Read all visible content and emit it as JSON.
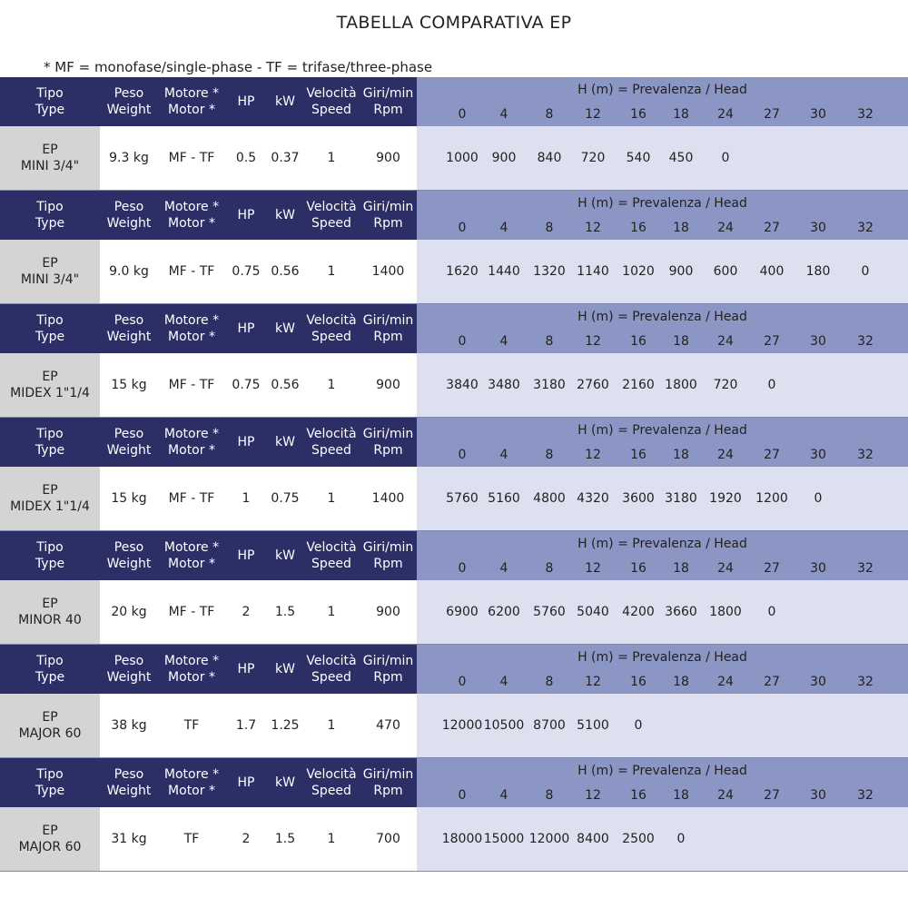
{
  "title": "TABELLA COMPARATIVA EP",
  "note": "* MF = monofase/single-phase - TF = trifase/three-phase",
  "header": {
    "tipo": [
      "Tipo",
      "Type"
    ],
    "peso": [
      "Peso",
      "Weight"
    ],
    "motore": [
      "Motore *",
      "Motor *"
    ],
    "hp": "HP",
    "kw": "kW",
    "velocita": [
      "Velocità",
      "Speed"
    ],
    "giri": [
      "Giri/min",
      "Rpm"
    ],
    "head_title": "H (m) = Prevalenza /  Head",
    "heads": [
      "0",
      "4",
      "8",
      "12",
      "16",
      "18",
      "24",
      "27",
      "30",
      "32"
    ]
  },
  "rows": [
    {
      "type": [
        "EP",
        "MINI 3/4\""
      ],
      "weight": "9.3 kg",
      "motor": "MF - TF",
      "hp": "0.5",
      "kw": "0.37",
      "speed": "1",
      "rpm": "900",
      "flows": [
        "1000",
        "900",
        "840",
        "720",
        "540",
        "450",
        "0",
        "",
        "",
        ""
      ]
    },
    {
      "type": [
        "EP",
        "MINI 3/4\""
      ],
      "weight": "9.0 kg",
      "motor": "MF - TF",
      "hp": "0.75",
      "kw": "0.56",
      "speed": "1",
      "rpm": "1400",
      "flows": [
        "1620",
        "1440",
        "1320",
        "1140",
        "1020",
        "900",
        "600",
        "400",
        "180",
        "0"
      ]
    },
    {
      "type": [
        "EP",
        "MIDEX 1\"1/4"
      ],
      "weight": "15 kg",
      "motor": "MF - TF",
      "hp": "0.75",
      "kw": "0.56",
      "speed": "1",
      "rpm": "900",
      "flows": [
        "3840",
        "3480",
        "3180",
        "2760",
        "2160",
        "1800",
        "720",
        "0",
        "",
        ""
      ]
    },
    {
      "type": [
        "EP",
        "MIDEX 1\"1/4"
      ],
      "weight": "15 kg",
      "motor": "MF - TF",
      "hp": "1",
      "kw": "0.75",
      "speed": "1",
      "rpm": "1400",
      "flows": [
        "5760",
        "5160",
        "4800",
        "4320",
        "3600",
        "3180",
        "1920",
        "1200",
        "0",
        ""
      ]
    },
    {
      "type": [
        "EP",
        "MINOR 40"
      ],
      "weight": "20 kg",
      "motor": "MF - TF",
      "hp": "2",
      "kw": "1.5",
      "speed": "1",
      "rpm": "900",
      "flows": [
        "6900",
        "6200",
        "5760",
        "5040",
        "4200",
        "3660",
        "1800",
        "0",
        "",
        ""
      ]
    },
    {
      "type": [
        "EP",
        "MAJOR 60"
      ],
      "weight": "38 kg",
      "motor": "TF",
      "hp": "1.7",
      "kw": "1.25",
      "speed": "1",
      "rpm": "470",
      "flows": [
        "12000",
        "10500",
        "8700",
        "5100",
        "0",
        "",
        "",
        "",
        "",
        ""
      ]
    },
    {
      "type": [
        "EP",
        "MAJOR 60"
      ],
      "weight": "31 kg",
      "motor": "TF",
      "hp": "2",
      "kw": "1.5",
      "speed": "1",
      "rpm": "700",
      "flows": [
        "18000",
        "15000",
        "12000",
        "8400",
        "2500",
        "0",
        "",
        "",
        "",
        ""
      ]
    }
  ],
  "colors": {
    "header_dark": "#2b2f66",
    "header_light": "#8b96c4",
    "row_type_bg": "#d4d4d4",
    "row_values_bg": "#dde0ef"
  }
}
